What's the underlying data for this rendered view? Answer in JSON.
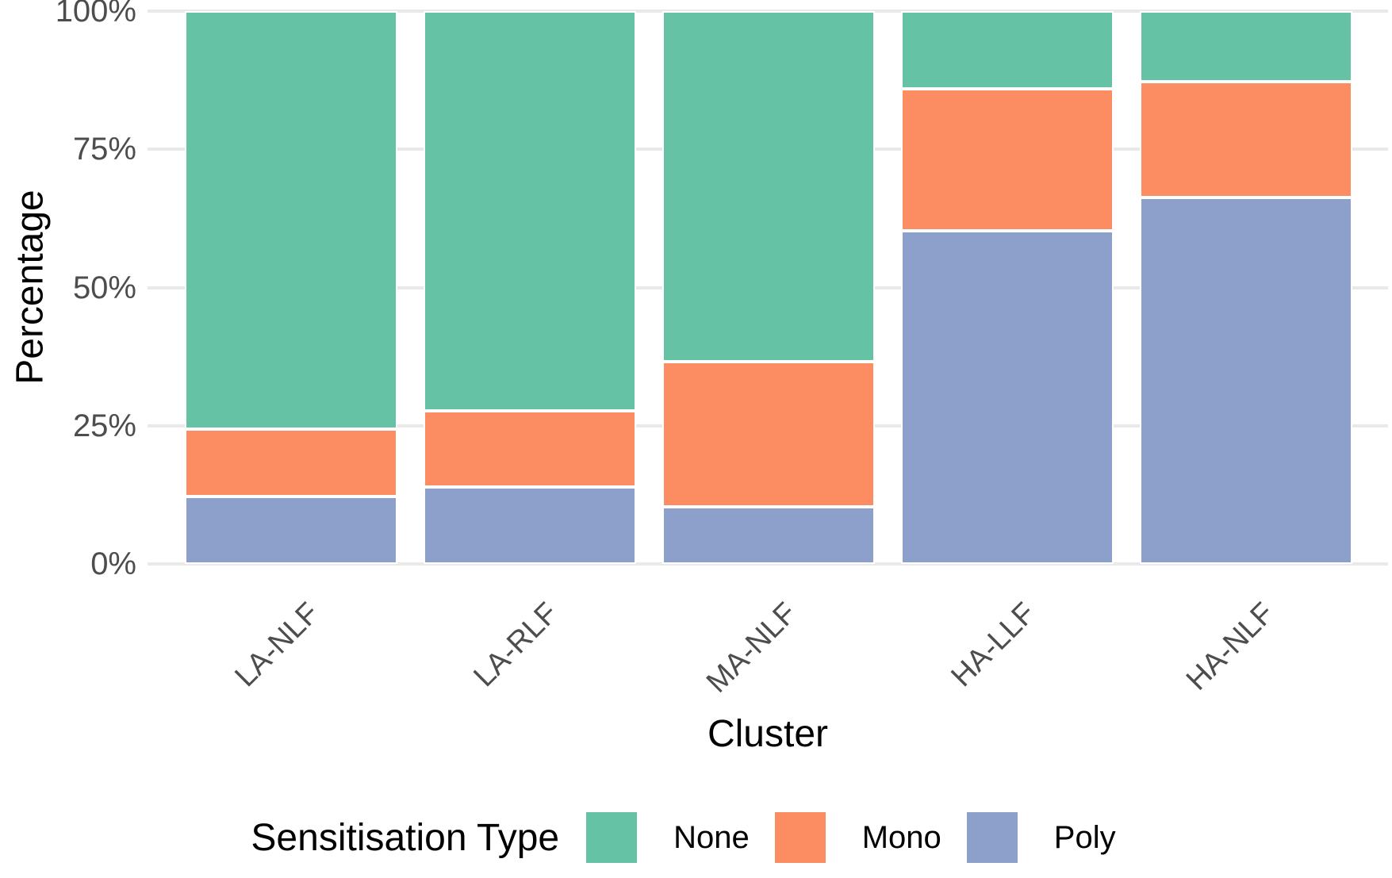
{
  "figure": {
    "background": "#ffffff"
  },
  "y_axis": {
    "title": "Percentage",
    "tick_labels": [
      "0%",
      "25%",
      "50%",
      "75%",
      "100%"
    ],
    "tick_values": [
      0,
      25,
      50,
      75,
      100
    ]
  },
  "x_axis": {
    "title": "Cluster",
    "tick_labels": [
      "LA-NLF",
      "LA-RLF",
      "MA-NLF",
      "HA-LLF",
      "HA-NLF"
    ]
  },
  "legend": {
    "title": "Sensitisation Type",
    "items": [
      {
        "label": "None",
        "color": "#66C2A5"
      },
      {
        "label": "Mono",
        "color": "#FC8D62"
      },
      {
        "label": "Poly",
        "color": "#8DA0CB"
      }
    ]
  },
  "chart_data": {
    "type": "bar",
    "stacked": true,
    "orientation": "vertical",
    "title": "",
    "xlabel": "Cluster",
    "ylabel": "Percentage",
    "ylim": [
      0,
      100
    ],
    "y_unit": "percent",
    "grid": "horizontal",
    "legend_position": "bottom",
    "categories": [
      "LA-NLF",
      "LA-RLF",
      "MA-NLF",
      "HA-LLF",
      "HA-NLF"
    ],
    "stack_order_bottom_to_top": [
      "Poly",
      "Mono",
      "None"
    ],
    "series": [
      {
        "name": "Poly",
        "color": "#8DA0CB",
        "values": [
          12.2,
          13.9,
          10.3,
          60.3,
          66.3
        ]
      },
      {
        "name": "Mono",
        "color": "#FC8D62",
        "values": [
          12.2,
          13.8,
          26.3,
          25.6,
          20.9
        ]
      },
      {
        "name": "None",
        "color": "#66C2A5",
        "values": [
          75.6,
          72.3,
          63.4,
          14.1,
          12.8
        ]
      }
    ]
  },
  "style_colors": {
    "gridline": "#e9e9e9",
    "tick_text": "#4d4d4d",
    "title_text": "#000000",
    "segment_border": "#ffffff"
  }
}
